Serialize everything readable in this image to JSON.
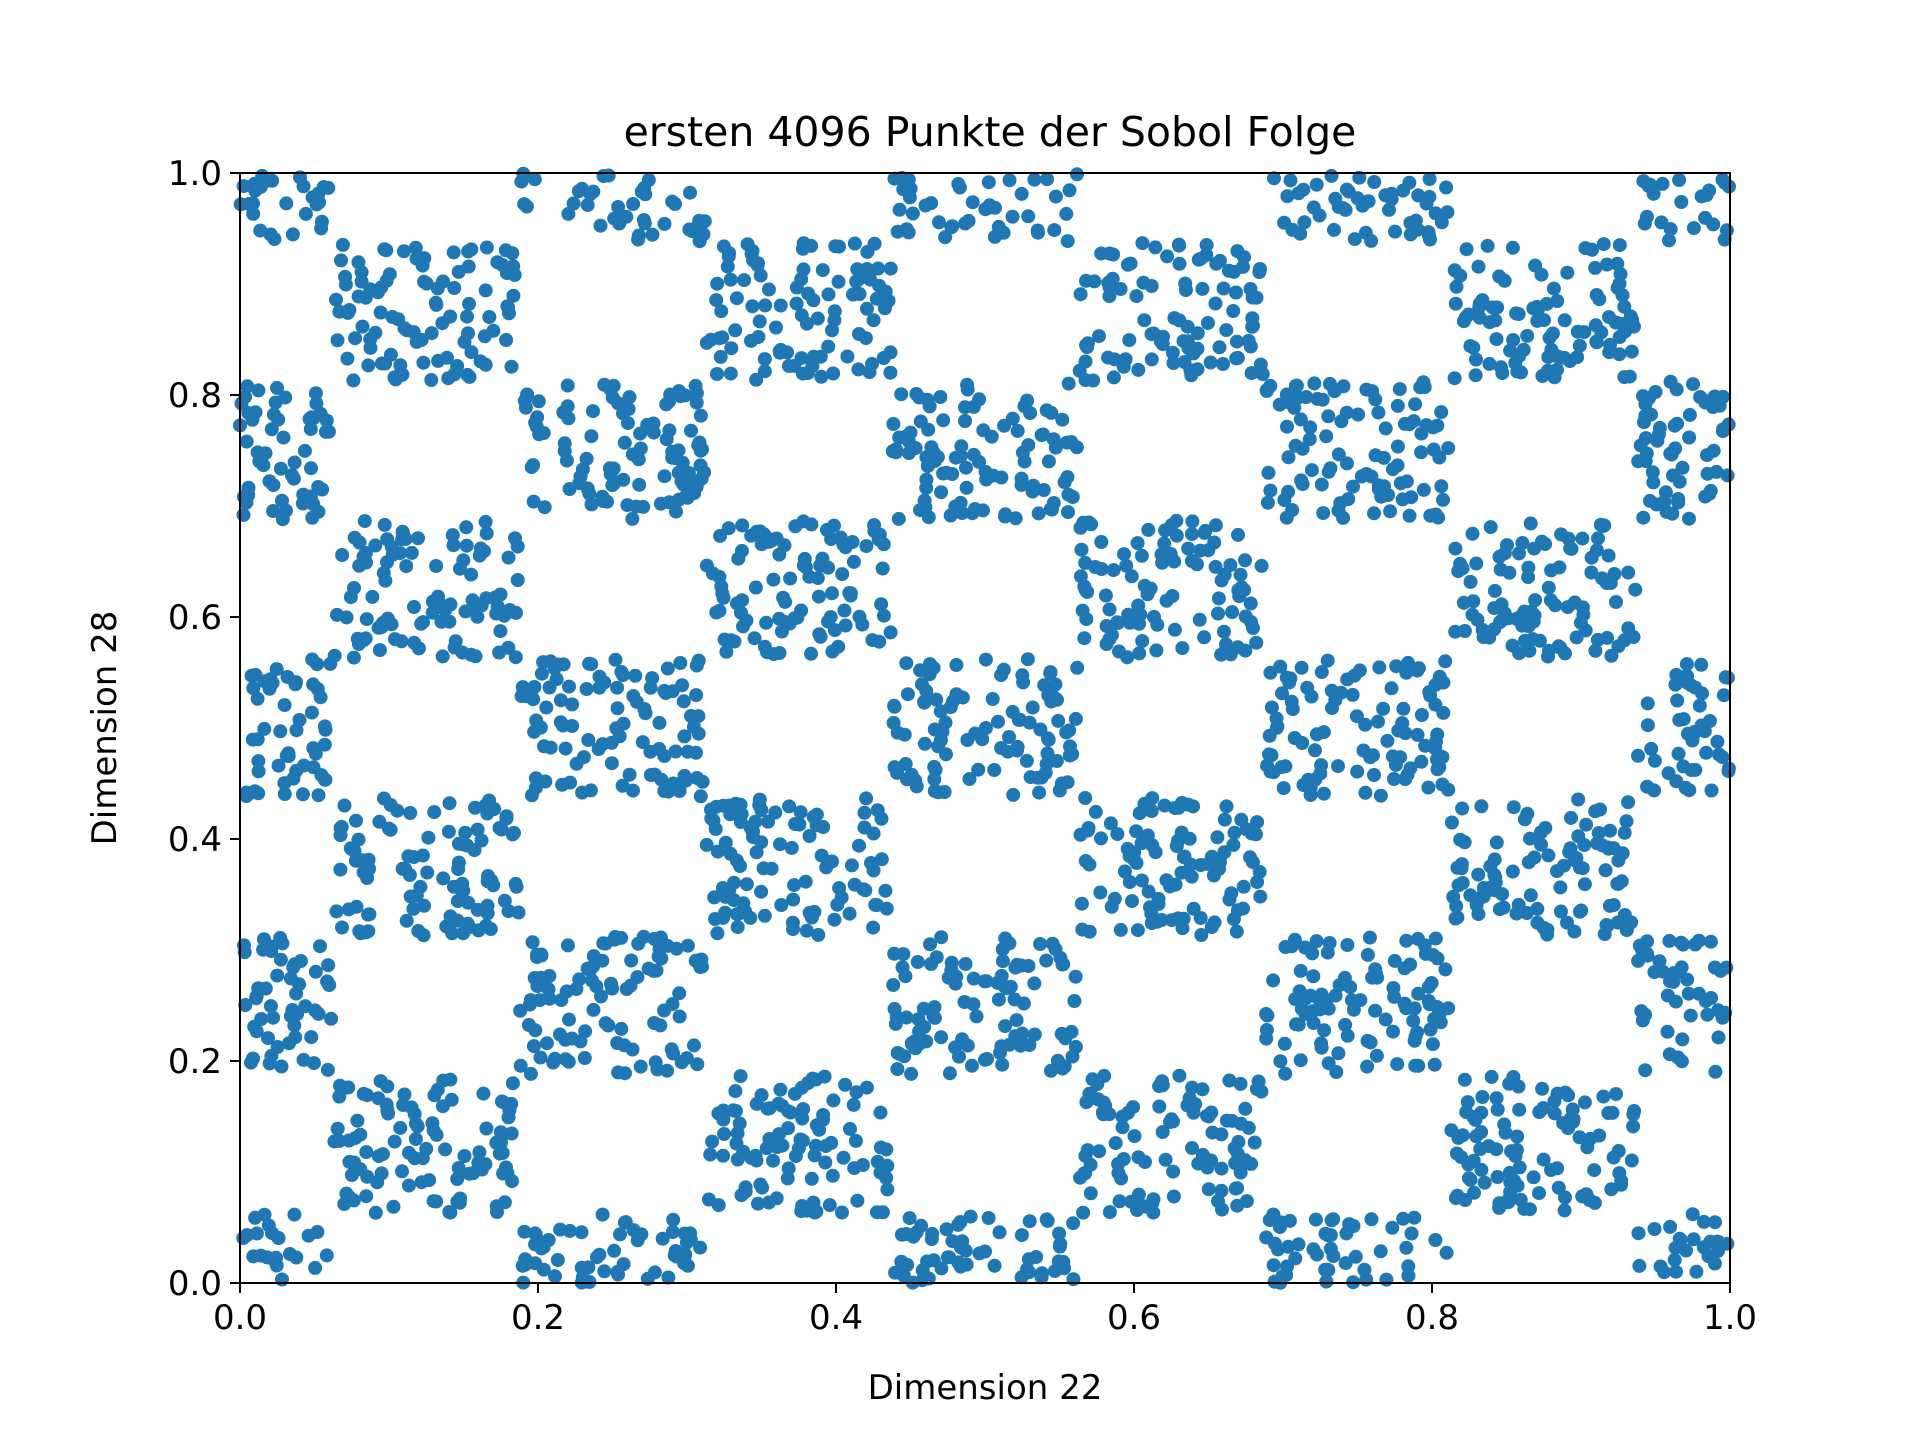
{
  "chart_data": {
    "type": "scatter",
    "title": "ersten 4096 Punkte der Sobol Folge",
    "xlabel": "Dimension 22",
    "ylabel": "Dimension 28",
    "xlim": [
      0.0,
      1.0
    ],
    "ylim": [
      0.0,
      1.0
    ],
    "xticks": [
      "0.0",
      "0.2",
      "0.4",
      "0.6",
      "0.8",
      "1.0"
    ],
    "yticks": [
      "0.0",
      "0.2",
      "0.4",
      "0.6",
      "0.8",
      "1.0"
    ],
    "grid": false,
    "legend": "none",
    "series": [
      {
        "point_count": 4096,
        "color": "#1f77b4",
        "marker": "circle",
        "pattern": "checkerboard clusters in 8 columns x 9 row bands of 1/8 width each; cluster centers x = 0.0, 0.125, 0.25, 0.375, 0.5, 0.625, 0.75, 0.875, 1.0 alternate with y bands"
      }
    ]
  },
  "colors": {
    "points": "#1f77b4",
    "axes": "#000000",
    "background": "#ffffff"
  }
}
